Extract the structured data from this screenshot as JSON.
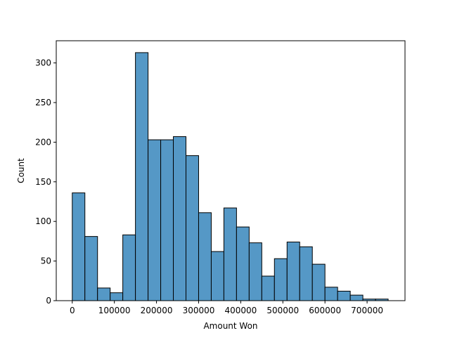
{
  "chart_data": {
    "type": "histogram",
    "x_label": "Amount Won",
    "y_label": "Count",
    "bins": [
      0,
      30000,
      60000,
      90000,
      120000,
      150000,
      180000,
      210000,
      240000,
      270000,
      300000,
      330000,
      360000,
      390000,
      420000,
      450000,
      480000,
      510000,
      540000,
      570000,
      600000,
      630000,
      660000,
      690000,
      720000,
      750000
    ],
    "values": [
      136,
      81,
      16,
      10,
      83,
      313,
      203,
      203,
      207,
      183,
      111,
      62,
      117,
      93,
      73,
      31,
      53,
      74,
      68,
      46,
      17,
      12,
      7,
      2,
      2
    ],
    "color": "#5598c6",
    "xlim": [
      -38000,
      790000
    ],
    "ylim": [
      0,
      328
    ],
    "xticks": [
      0,
      100000,
      200000,
      300000,
      400000,
      500000,
      600000,
      700000
    ],
    "yticks": [
      0,
      50,
      100,
      150,
      200,
      250,
      300
    ]
  }
}
